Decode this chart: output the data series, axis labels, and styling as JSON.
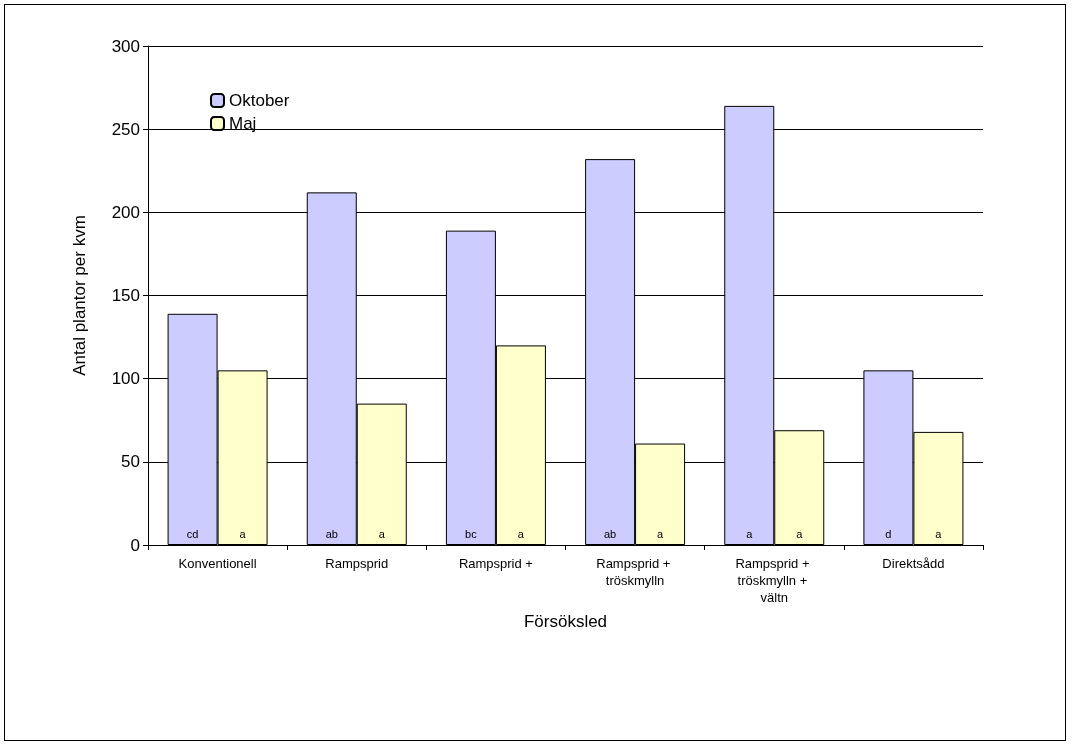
{
  "chart_data": {
    "type": "bar",
    "xlabel": "Försöksled",
    "ylabel": "Antal plantor per kvm",
    "categories": [
      "Konventionell",
      "Rampsprid",
      "Rampsprid +",
      "Rampsprid + tröskmylln",
      "Rampsprid + tröskmylln + vältn",
      "Direktsådd"
    ],
    "series": [
      {
        "name": "Oktober",
        "color": "#ccccff",
        "values": [
          139,
          212,
          189,
          232,
          264,
          105
        ],
        "value_labels": [
          "cd",
          "ab",
          "bc",
          "ab",
          "a",
          "d"
        ]
      },
      {
        "name": "Maj",
        "color": "#ffffcc",
        "values": [
          105,
          85,
          120,
          61,
          69,
          68
        ],
        "value_labels": [
          "a",
          "a",
          "a",
          "a",
          "a",
          "a"
        ]
      }
    ],
    "ylim": [
      0,
      300
    ],
    "yticks": [
      0,
      50,
      100,
      150,
      200,
      250,
      300
    ],
    "grid": "y",
    "legend": "top left"
  }
}
